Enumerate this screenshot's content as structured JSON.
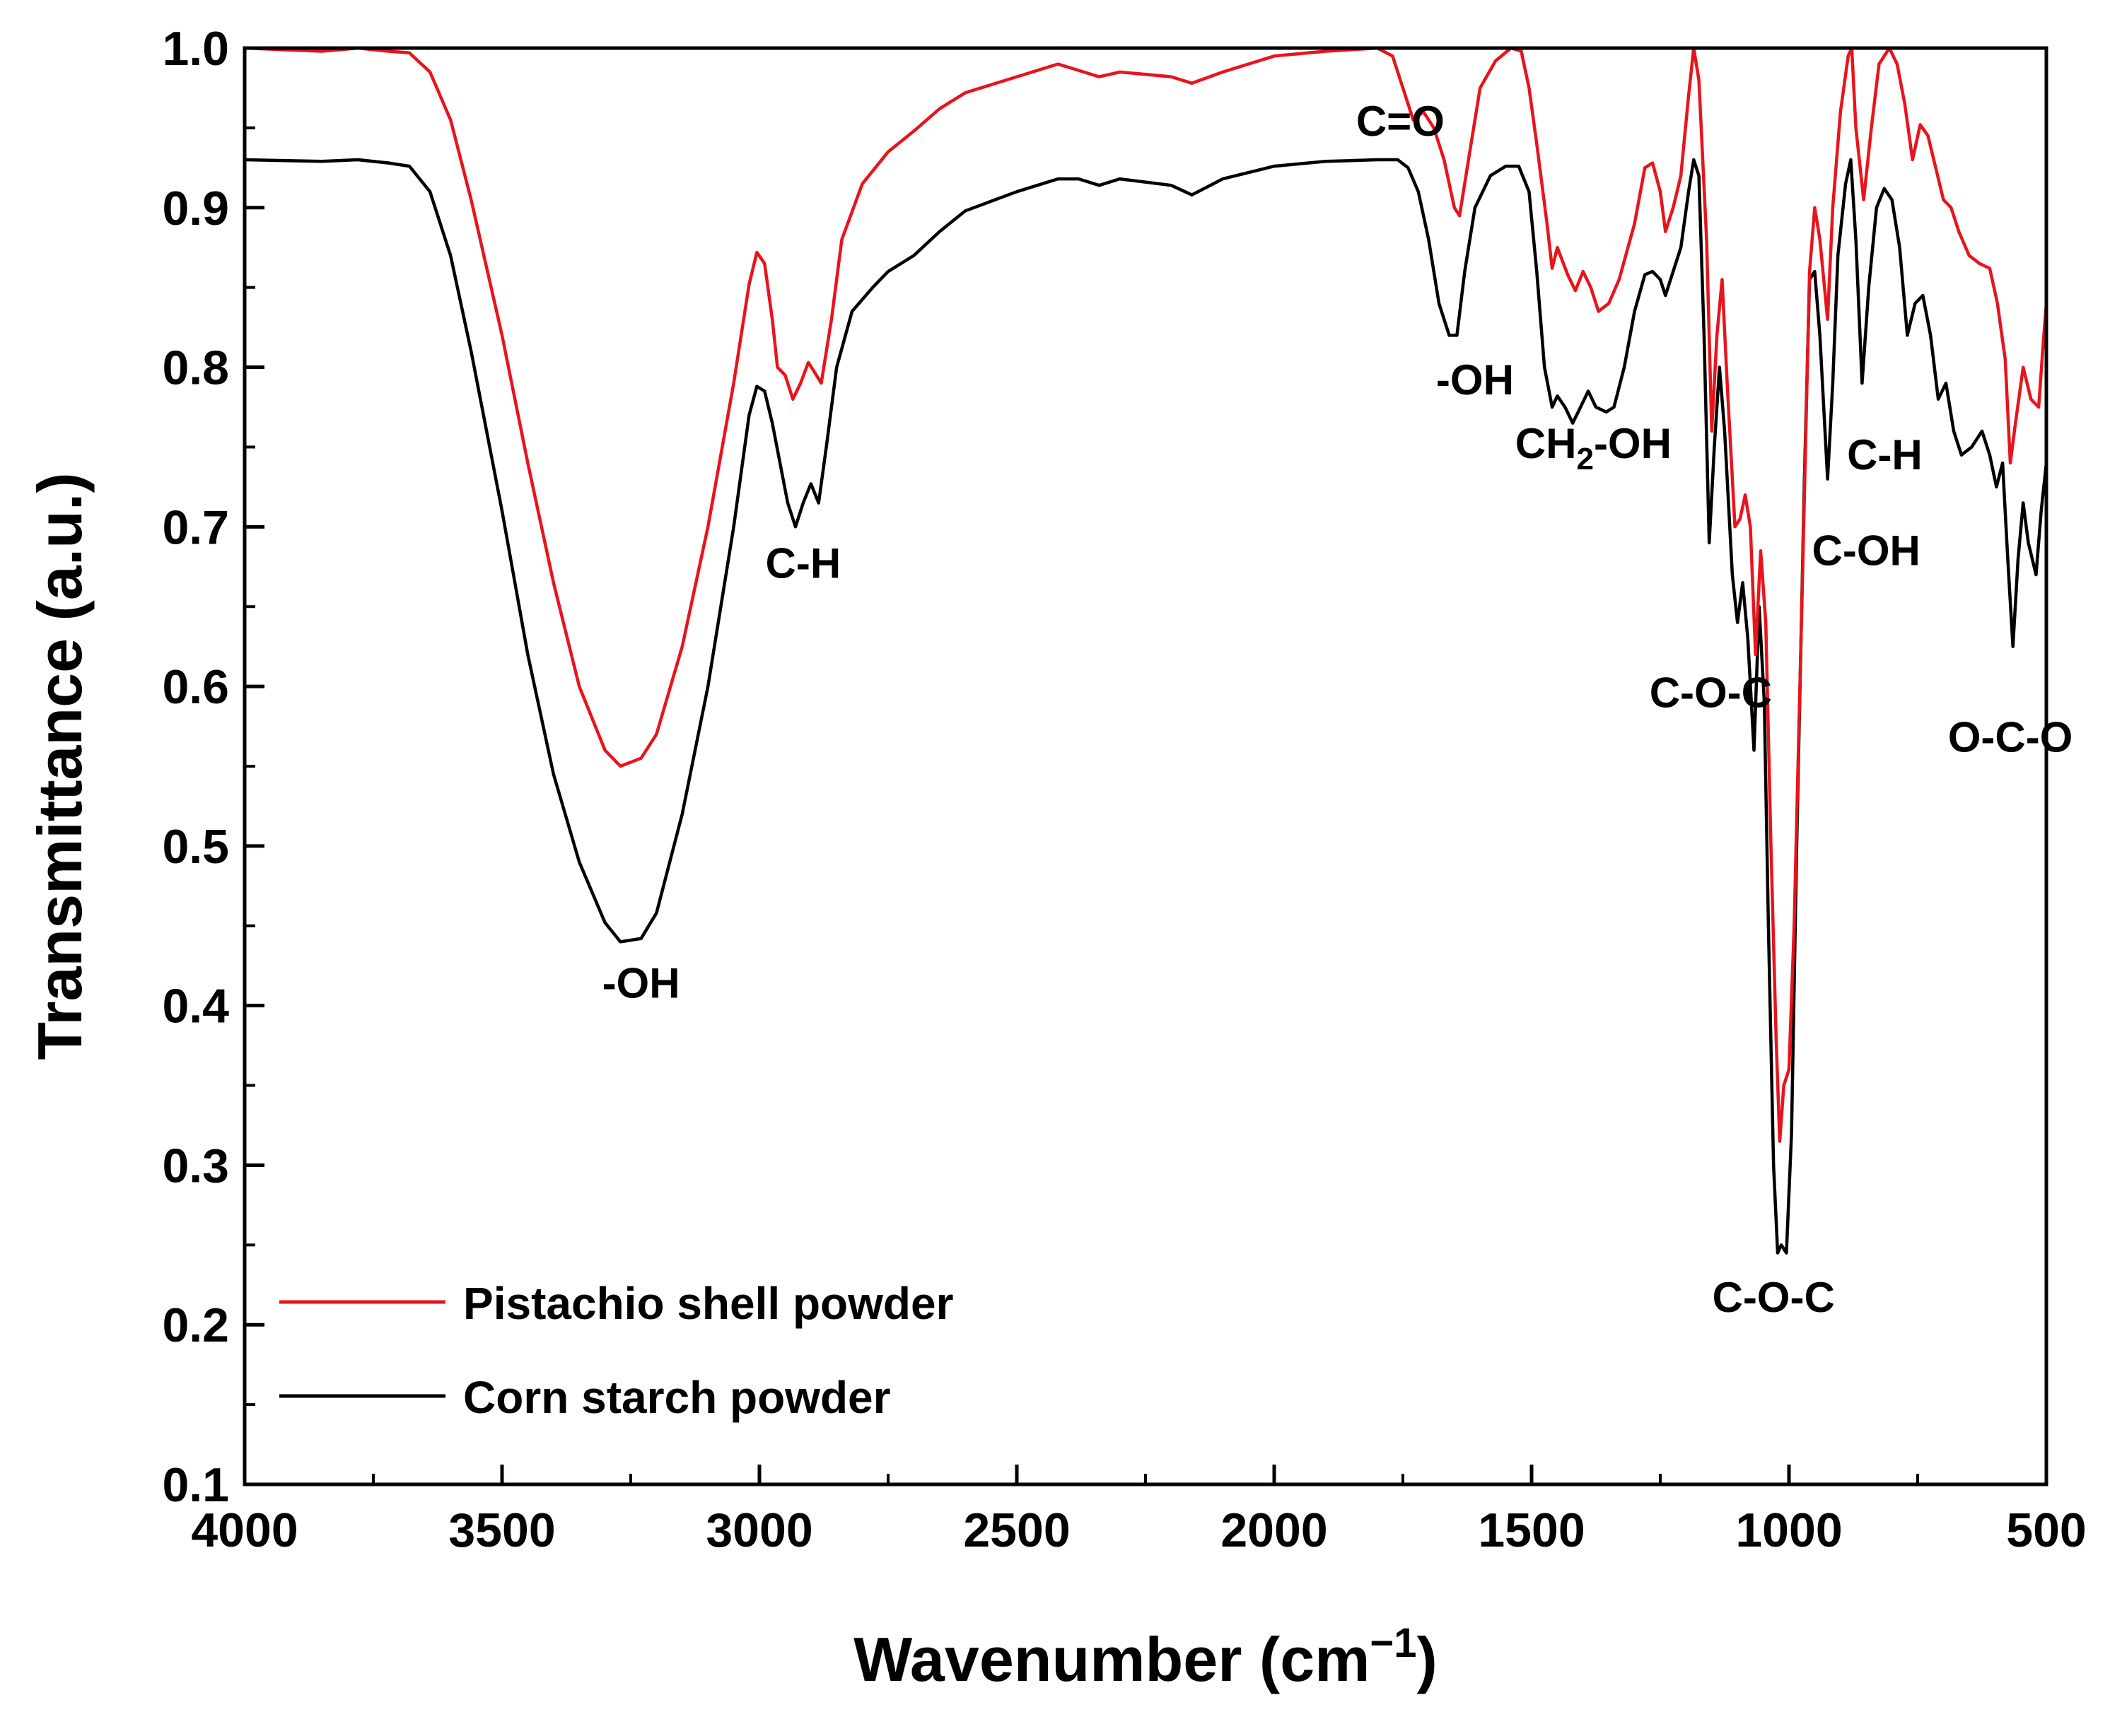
{
  "chart_data": {
    "type": "line",
    "title": "",
    "xlabel": "Wavenumber (cm",
    "xlabel_sup": "−1",
    "xlabel_close": ")",
    "ylabel": "Transmittance (a.u.)",
    "xlim": [
      4000,
      500
    ],
    "ylim": [
      0.1,
      1.0
    ],
    "x_ticks": [
      "4000",
      "3500",
      "3000",
      "2500",
      "2000",
      "1500",
      "1000",
      "500"
    ],
    "y_ticks": [
      "0.1",
      "0.2",
      "0.3",
      "0.4",
      "0.5",
      "0.6",
      "0.7",
      "0.8",
      "0.9",
      "1.0"
    ],
    "legend_position": "bottom-left",
    "series": [
      {
        "name": "Pistachio shell powder",
        "color": "#e8141c",
        "points": [
          [
            4000,
            1.0
          ],
          [
            3850,
            0.998
          ],
          [
            3780,
            1.0
          ],
          [
            3720,
            0.998
          ],
          [
            3680,
            0.997
          ],
          [
            3640,
            0.985
          ],
          [
            3600,
            0.955
          ],
          [
            3560,
            0.905
          ],
          [
            3500,
            0.82
          ],
          [
            3450,
            0.74
          ],
          [
            3400,
            0.665
          ],
          [
            3350,
            0.6
          ],
          [
            3300,
            0.56
          ],
          [
            3270,
            0.55
          ],
          [
            3230,
            0.555
          ],
          [
            3200,
            0.57
          ],
          [
            3150,
            0.625
          ],
          [
            3100,
            0.7
          ],
          [
            3050,
            0.79
          ],
          [
            3020,
            0.852
          ],
          [
            3005,
            0.872
          ],
          [
            2990,
            0.865
          ],
          [
            2975,
            0.83
          ],
          [
            2965,
            0.8
          ],
          [
            2950,
            0.795
          ],
          [
            2935,
            0.78
          ],
          [
            2920,
            0.79
          ],
          [
            2905,
            0.803
          ],
          [
            2895,
            0.798
          ],
          [
            2880,
            0.79
          ],
          [
            2860,
            0.83
          ],
          [
            2840,
            0.88
          ],
          [
            2800,
            0.915
          ],
          [
            2750,
            0.935
          ],
          [
            2700,
            0.948
          ],
          [
            2650,
            0.962
          ],
          [
            2600,
            0.972
          ],
          [
            2500,
            0.982
          ],
          [
            2420,
            0.99
          ],
          [
            2380,
            0.986
          ],
          [
            2340,
            0.982
          ],
          [
            2300,
            0.985
          ],
          [
            2200,
            0.982
          ],
          [
            2160,
            0.978
          ],
          [
            2100,
            0.985
          ],
          [
            2000,
            0.995
          ],
          [
            1900,
            0.998
          ],
          [
            1800,
            1.0
          ],
          [
            1770,
            0.995
          ],
          [
            1750,
            0.975
          ],
          [
            1730,
            0.955
          ],
          [
            1710,
            0.96
          ],
          [
            1690,
            0.95
          ],
          [
            1670,
            0.93
          ],
          [
            1650,
            0.9
          ],
          [
            1640,
            0.895
          ],
          [
            1620,
            0.935
          ],
          [
            1600,
            0.975
          ],
          [
            1570,
            0.992
          ],
          [
            1540,
            1.0
          ],
          [
            1520,
            0.998
          ],
          [
            1505,
            0.975
          ],
          [
            1490,
            0.94
          ],
          [
            1470,
            0.89
          ],
          [
            1460,
            0.862
          ],
          [
            1450,
            0.875
          ],
          [
            1430,
            0.858
          ],
          [
            1415,
            0.848
          ],
          [
            1400,
            0.86
          ],
          [
            1385,
            0.85
          ],
          [
            1370,
            0.835
          ],
          [
            1350,
            0.84
          ],
          [
            1330,
            0.855
          ],
          [
            1300,
            0.89
          ],
          [
            1280,
            0.925
          ],
          [
            1265,
            0.928
          ],
          [
            1250,
            0.91
          ],
          [
            1240,
            0.885
          ],
          [
            1225,
            0.9
          ],
          [
            1210,
            0.92
          ],
          [
            1195,
            0.97
          ],
          [
            1185,
            1.0
          ],
          [
            1175,
            0.98
          ],
          [
            1160,
            0.88
          ],
          [
            1150,
            0.76
          ],
          [
            1140,
            0.82
          ],
          [
            1130,
            0.855
          ],
          [
            1120,
            0.79
          ],
          [
            1105,
            0.7
          ],
          [
            1095,
            0.705
          ],
          [
            1085,
            0.72
          ],
          [
            1075,
            0.7
          ],
          [
            1065,
            0.62
          ],
          [
            1055,
            0.685
          ],
          [
            1045,
            0.64
          ],
          [
            1035,
            0.5
          ],
          [
            1025,
            0.38
          ],
          [
            1018,
            0.315
          ],
          [
            1010,
            0.35
          ],
          [
            1000,
            0.36
          ],
          [
            990,
            0.45
          ],
          [
            975,
            0.65
          ],
          [
            960,
            0.86
          ],
          [
            950,
            0.9
          ],
          [
            940,
            0.88
          ],
          [
            925,
            0.83
          ],
          [
            915,
            0.9
          ],
          [
            900,
            0.96
          ],
          [
            885,
            0.995
          ],
          [
            878,
            1.0
          ],
          [
            870,
            0.95
          ],
          [
            855,
            0.905
          ],
          [
            840,
            0.95
          ],
          [
            825,
            0.99
          ],
          [
            805,
            1.0
          ],
          [
            790,
            0.99
          ],
          [
            775,
            0.965
          ],
          [
            760,
            0.93
          ],
          [
            745,
            0.952
          ],
          [
            730,
            0.945
          ],
          [
            715,
            0.925
          ],
          [
            700,
            0.905
          ],
          [
            685,
            0.9
          ],
          [
            670,
            0.885
          ],
          [
            650,
            0.87
          ],
          [
            630,
            0.865
          ],
          [
            610,
            0.862
          ],
          [
            595,
            0.84
          ],
          [
            580,
            0.805
          ],
          [
            570,
            0.74
          ],
          [
            560,
            0.765
          ],
          [
            545,
            0.8
          ],
          [
            530,
            0.78
          ],
          [
            515,
            0.775
          ],
          [
            505,
            0.82
          ],
          [
            500,
            0.84
          ]
        ]
      },
      {
        "name": "Corn starch powder",
        "color": "#000000",
        "points": [
          [
            4000,
            0.93
          ],
          [
            3850,
            0.929
          ],
          [
            3780,
            0.93
          ],
          [
            3720,
            0.928
          ],
          [
            3680,
            0.926
          ],
          [
            3640,
            0.91
          ],
          [
            3600,
            0.87
          ],
          [
            3560,
            0.81
          ],
          [
            3500,
            0.71
          ],
          [
            3450,
            0.62
          ],
          [
            3400,
            0.545
          ],
          [
            3350,
            0.49
          ],
          [
            3300,
            0.452
          ],
          [
            3270,
            0.44
          ],
          [
            3230,
            0.442
          ],
          [
            3200,
            0.458
          ],
          [
            3150,
            0.52
          ],
          [
            3100,
            0.6
          ],
          [
            3050,
            0.7
          ],
          [
            3020,
            0.77
          ],
          [
            3005,
            0.788
          ],
          [
            2990,
            0.785
          ],
          [
            2975,
            0.765
          ],
          [
            2960,
            0.74
          ],
          [
            2945,
            0.715
          ],
          [
            2930,
            0.7
          ],
          [
            2915,
            0.715
          ],
          [
            2900,
            0.727
          ],
          [
            2885,
            0.715
          ],
          [
            2870,
            0.75
          ],
          [
            2850,
            0.8
          ],
          [
            2820,
            0.835
          ],
          [
            2780,
            0.85
          ],
          [
            2750,
            0.86
          ],
          [
            2700,
            0.87
          ],
          [
            2650,
            0.885
          ],
          [
            2600,
            0.898
          ],
          [
            2500,
            0.91
          ],
          [
            2420,
            0.918
          ],
          [
            2380,
            0.918
          ],
          [
            2340,
            0.914
          ],
          [
            2300,
            0.918
          ],
          [
            2200,
            0.914
          ],
          [
            2160,
            0.908
          ],
          [
            2100,
            0.918
          ],
          [
            2000,
            0.926
          ],
          [
            1900,
            0.929
          ],
          [
            1800,
            0.93
          ],
          [
            1760,
            0.93
          ],
          [
            1740,
            0.925
          ],
          [
            1720,
            0.91
          ],
          [
            1700,
            0.88
          ],
          [
            1680,
            0.84
          ],
          [
            1660,
            0.82
          ],
          [
            1645,
            0.82
          ],
          [
            1630,
            0.86
          ],
          [
            1610,
            0.9
          ],
          [
            1580,
            0.92
          ],
          [
            1550,
            0.926
          ],
          [
            1525,
            0.926
          ],
          [
            1505,
            0.91
          ],
          [
            1490,
            0.86
          ],
          [
            1475,
            0.8
          ],
          [
            1460,
            0.775
          ],
          [
            1450,
            0.782
          ],
          [
            1435,
            0.775
          ],
          [
            1420,
            0.765
          ],
          [
            1405,
            0.775
          ],
          [
            1390,
            0.785
          ],
          [
            1375,
            0.775
          ],
          [
            1355,
            0.772
          ],
          [
            1340,
            0.775
          ],
          [
            1320,
            0.8
          ],
          [
            1300,
            0.835
          ],
          [
            1280,
            0.858
          ],
          [
            1265,
            0.86
          ],
          [
            1250,
            0.855
          ],
          [
            1240,
            0.845
          ],
          [
            1225,
            0.86
          ],
          [
            1210,
            0.875
          ],
          [
            1195,
            0.91
          ],
          [
            1185,
            0.93
          ],
          [
            1175,
            0.92
          ],
          [
            1165,
            0.82
          ],
          [
            1155,
            0.69
          ],
          [
            1145,
            0.75
          ],
          [
            1135,
            0.8
          ],
          [
            1125,
            0.76
          ],
          [
            1110,
            0.67
          ],
          [
            1100,
            0.64
          ],
          [
            1090,
            0.665
          ],
          [
            1080,
            0.63
          ],
          [
            1068,
            0.56
          ],
          [
            1058,
            0.65
          ],
          [
            1048,
            0.59
          ],
          [
            1040,
            0.45
          ],
          [
            1030,
            0.3
          ],
          [
            1022,
            0.245
          ],
          [
            1015,
            0.25
          ],
          [
            1005,
            0.245
          ],
          [
            995,
            0.32
          ],
          [
            985,
            0.5
          ],
          [
            970,
            0.73
          ],
          [
            960,
            0.855
          ],
          [
            950,
            0.86
          ],
          [
            940,
            0.82
          ],
          [
            925,
            0.73
          ],
          [
            915,
            0.79
          ],
          [
            905,
            0.87
          ],
          [
            890,
            0.915
          ],
          [
            880,
            0.93
          ],
          [
            870,
            0.88
          ],
          [
            858,
            0.79
          ],
          [
            845,
            0.85
          ],
          [
            830,
            0.9
          ],
          [
            815,
            0.912
          ],
          [
            800,
            0.905
          ],
          [
            785,
            0.875
          ],
          [
            770,
            0.82
          ],
          [
            755,
            0.84
          ],
          [
            740,
            0.845
          ],
          [
            725,
            0.82
          ],
          [
            710,
            0.78
          ],
          [
            695,
            0.79
          ],
          [
            680,
            0.76
          ],
          [
            665,
            0.745
          ],
          [
            645,
            0.75
          ],
          [
            625,
            0.76
          ],
          [
            610,
            0.745
          ],
          [
            597,
            0.725
          ],
          [
            585,
            0.74
          ],
          [
            575,
            0.68
          ],
          [
            565,
            0.625
          ],
          [
            555,
            0.68
          ],
          [
            545,
            0.715
          ],
          [
            535,
            0.69
          ],
          [
            520,
            0.67
          ],
          [
            510,
            0.71
          ],
          [
            500,
            0.74
          ]
        ]
      }
    ],
    "annotations": [
      {
        "text": "C=O",
        "x": 1755,
        "y": 0.945
      },
      {
        "text": "-OH",
        "x": 1610,
        "y": 0.783
      },
      {
        "text": "CH",
        "sub": "2",
        "suffix": "-OH",
        "x": 1380,
        "y": 0.743
      },
      {
        "text": "C-H",
        "x": 2915,
        "y": 0.668
      },
      {
        "text": "-OH",
        "x": 3230,
        "y": 0.405
      },
      {
        "text": "C-O-C",
        "x": 1152,
        "y": 0.587
      },
      {
        "text": "C-O-C",
        "x": 1030,
        "y": 0.208
      },
      {
        "text": "C-H",
        "x": 814,
        "y": 0.736
      },
      {
        "text": "C-OH",
        "x": 850,
        "y": 0.676
      },
      {
        "text": "O-C-O",
        "x": 570,
        "y": 0.559
      }
    ]
  }
}
